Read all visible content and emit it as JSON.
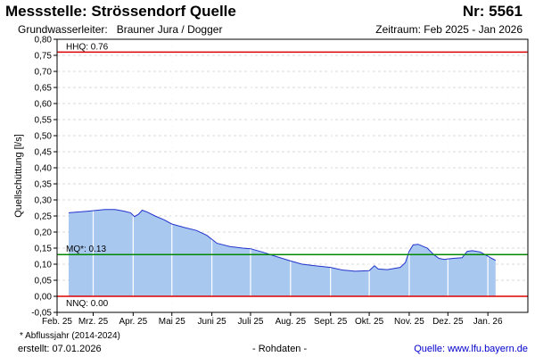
{
  "header": {
    "station": "Messstelle: Strössendorf Quelle",
    "number": "Nr: 5561",
    "aquifer_label": "Grundwasserleiter:",
    "aquifer_value": "Brauner Jura / Dogger",
    "period": "Zeitraum: Feb 2025 - Jan 2026"
  },
  "footer": {
    "footnote": "* Abflussjahr (2014-2024)",
    "created": "erstellt:  07.01.2026",
    "raw": "- Rohdaten -",
    "source": "Quelle: www.lfu.bayern.de"
  },
  "colors": {
    "fill": "#a8c8f0",
    "line": "#2233cc",
    "hhq": "#dd0000",
    "nnq": "#dd0000",
    "mq": "#008800",
    "grid": "#cccccc"
  },
  "chart_data": {
    "type": "area",
    "title": "",
    "xlabel": "",
    "ylabel": "Quellschüttung [l/s]",
    "ylim": [
      -0.05,
      0.8
    ],
    "y_ticks": [
      "-0,05",
      "0,00",
      "0,05",
      "0,10",
      "0,15",
      "0,20",
      "0,25",
      "0,30",
      "0,35",
      "0,40",
      "0,45",
      "0,50",
      "0,55",
      "0,60",
      "0,65",
      "0,70",
      "0,75",
      "0,80"
    ],
    "x_ticks": [
      "Feb. 25",
      "Mrz. 25",
      "Apr. 25",
      "Mai 25",
      "Juni 25",
      "Juli 25",
      "Aug. 25",
      "Sept. 25",
      "Okt. 25",
      "Nov. 25",
      "Dez. 25",
      "Jan. 26"
    ],
    "x_range": [
      "2025-02-01",
      "2026-02-01"
    ],
    "grid": true,
    "reference_lines": [
      {
        "label": "HHQ: 0.76",
        "value": 0.76,
        "kind": "hhq"
      },
      {
        "label": "MQ*: 0.13",
        "value": 0.13,
        "kind": "mq"
      },
      {
        "label": "NNQ: 0.00",
        "value": 0.0,
        "kind": "nnq"
      }
    ],
    "series": [
      {
        "points": [
          [
            "2025-02-10",
            0.26
          ],
          [
            "2025-02-25",
            0.265
          ],
          [
            "2025-03-10",
            0.27
          ],
          [
            "2025-03-18",
            0.27
          ],
          [
            "2025-03-25",
            0.265
          ],
          [
            "2025-03-30",
            0.26
          ],
          [
            "2025-04-02",
            0.248
          ],
          [
            "2025-04-05",
            0.255
          ],
          [
            "2025-04-08",
            0.268
          ],
          [
            "2025-04-12",
            0.262
          ],
          [
            "2025-04-18",
            0.25
          ],
          [
            "2025-04-25",
            0.238
          ],
          [
            "2025-05-01",
            0.225
          ],
          [
            "2025-05-10",
            0.215
          ],
          [
            "2025-05-20",
            0.205
          ],
          [
            "2025-05-28",
            0.19
          ],
          [
            "2025-06-05",
            0.165
          ],
          [
            "2025-06-15",
            0.155
          ],
          [
            "2025-06-25",
            0.15
          ],
          [
            "2025-07-01",
            0.148
          ],
          [
            "2025-07-10",
            0.138
          ],
          [
            "2025-07-20",
            0.125
          ],
          [
            "2025-08-01",
            0.11
          ],
          [
            "2025-08-10",
            0.1
          ],
          [
            "2025-08-20",
            0.095
          ],
          [
            "2025-09-01",
            0.09
          ],
          [
            "2025-09-10",
            0.082
          ],
          [
            "2025-09-20",
            0.078
          ],
          [
            "2025-10-01",
            0.08
          ],
          [
            "2025-10-05",
            0.095
          ],
          [
            "2025-10-08",
            0.085
          ],
          [
            "2025-10-15",
            0.083
          ],
          [
            "2025-10-25",
            0.09
          ],
          [
            "2025-10-29",
            0.105
          ],
          [
            "2025-11-01",
            0.14
          ],
          [
            "2025-11-04",
            0.16
          ],
          [
            "2025-11-08",
            0.162
          ],
          [
            "2025-11-15",
            0.15
          ],
          [
            "2025-11-20",
            0.13
          ],
          [
            "2025-11-24",
            0.118
          ],
          [
            "2025-11-28",
            0.115
          ],
          [
            "2025-12-05",
            0.118
          ],
          [
            "2025-12-12",
            0.12
          ],
          [
            "2025-12-16",
            0.14
          ],
          [
            "2025-12-20",
            0.142
          ],
          [
            "2025-12-26",
            0.138
          ],
          [
            "2026-01-01",
            0.125
          ],
          [
            "2026-01-04",
            0.118
          ],
          [
            "2026-01-07",
            0.112
          ]
        ]
      }
    ]
  }
}
